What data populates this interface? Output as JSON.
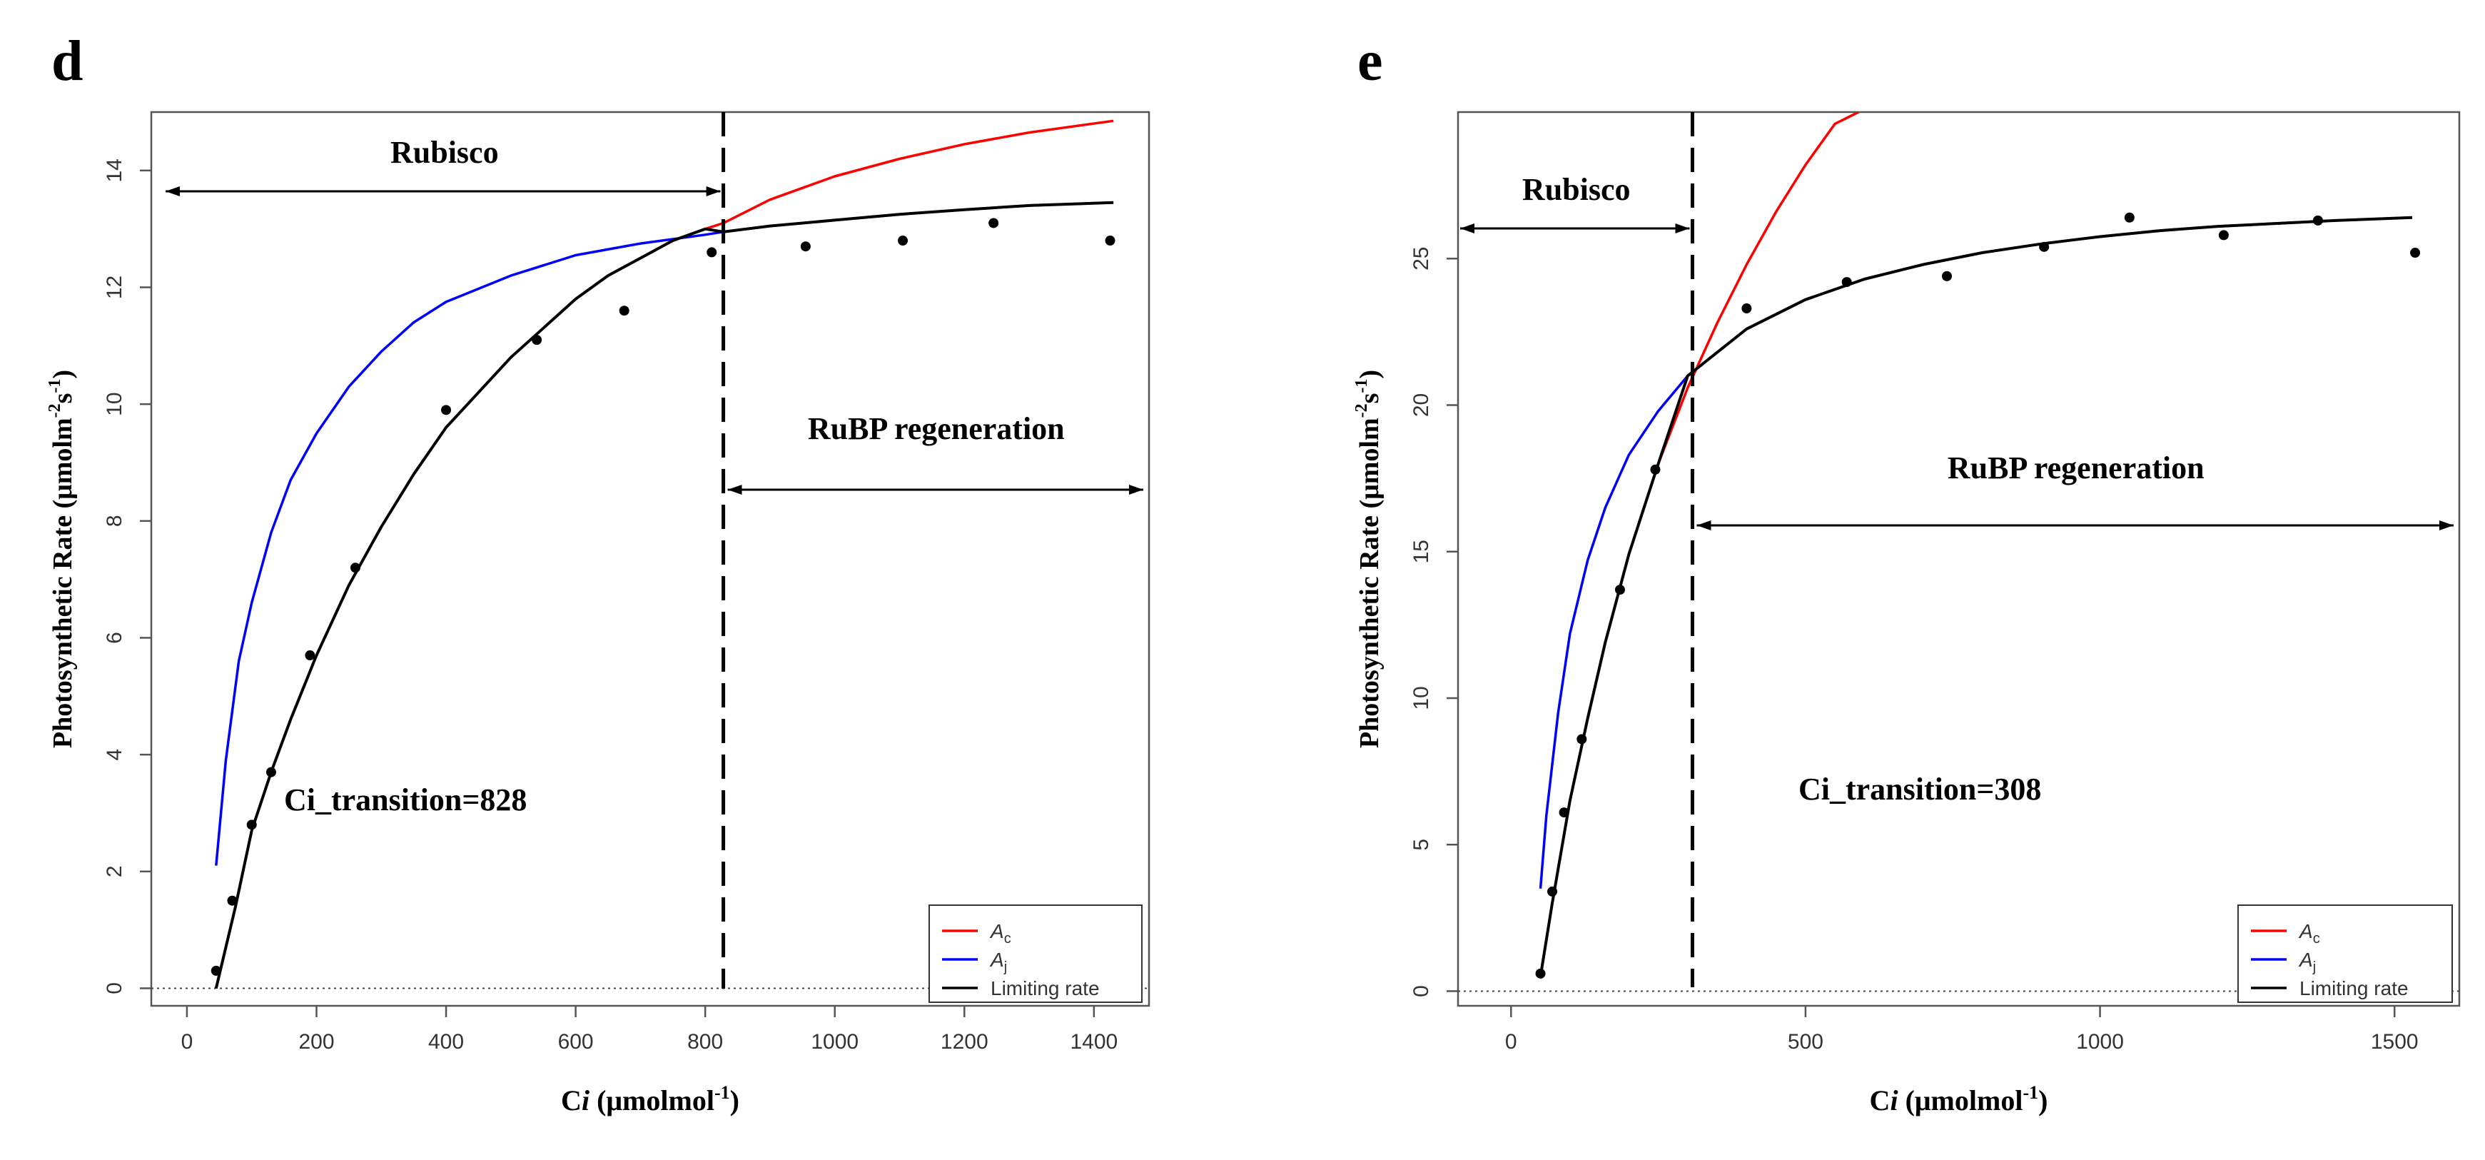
{
  "chart_data": [
    {
      "panel": "d",
      "type": "line",
      "xlabel": "Ci (μmolmol⁻¹)",
      "xlabel_parts": [
        "C",
        "i",
        " (μmolmol",
        "-1",
        ")"
      ],
      "ylabel_parts": [
        "Photosynthetic Rate (μmolm",
        "-2",
        "s",
        "-1",
        ")"
      ],
      "xlim": [
        -55,
        1485
      ],
      "ylim": [
        -0.3,
        15.0
      ],
      "xticks": [
        0,
        200,
        400,
        600,
        800,
        1000,
        1200,
        1400
      ],
      "yticks": [
        0,
        2,
        4,
        6,
        8,
        10,
        12,
        14
      ],
      "transition": 828,
      "rubisco_label": "Rubisco",
      "rubp_label": "RuBP regeneration",
      "transition_label": "Ci_transition=828",
      "legend": [
        {
          "label": "A",
          "sub": "c",
          "color": "#ff0000"
        },
        {
          "label": "A",
          "sub": "j",
          "color": "#0000ff"
        },
        {
          "label": "Limiting rate",
          "sub": "",
          "color": "#000000"
        }
      ],
      "series": [
        {
          "name": "Ac",
          "color": "#ff0000",
          "x": [
            45,
            75,
            100,
            130,
            160,
            200,
            250,
            300,
            350,
            400,
            450,
            500,
            550,
            600,
            650,
            700,
            750,
            800,
            828,
            900,
            1000,
            1100,
            1200,
            1300,
            1430
          ],
          "y": [
            0.0,
            1.4,
            2.7,
            3.7,
            4.6,
            5.7,
            6.9,
            7.9,
            8.8,
            9.6,
            10.2,
            10.8,
            11.3,
            11.8,
            12.2,
            12.5,
            12.8,
            13.0,
            13.1,
            13.5,
            13.9,
            14.2,
            14.45,
            14.65,
            14.85
          ]
        },
        {
          "name": "Aj",
          "color": "#0000ff",
          "x": [
            45,
            60,
            80,
            100,
            130,
            160,
            200,
            250,
            300,
            350,
            400,
            500,
            600,
            700,
            800,
            828,
            900,
            1000,
            1100,
            1200,
            1300,
            1430
          ],
          "y": [
            2.1,
            3.9,
            5.6,
            6.6,
            7.8,
            8.7,
            9.5,
            10.3,
            10.9,
            11.4,
            11.75,
            12.2,
            12.55,
            12.75,
            12.9,
            12.95,
            13.05,
            13.15,
            13.25,
            13.33,
            13.4,
            13.45
          ]
        },
        {
          "name": "Limiting rate",
          "color": "#000000",
          "x": [
            45,
            75,
            100,
            130,
            160,
            200,
            250,
            300,
            350,
            400,
            450,
            500,
            550,
            600,
            650,
            700,
            750,
            800,
            828,
            900,
            1000,
            1100,
            1200,
            1300,
            1430
          ],
          "y": [
            0.0,
            1.4,
            2.7,
            3.7,
            4.6,
            5.7,
            6.9,
            7.9,
            8.8,
            9.6,
            10.2,
            10.8,
            11.3,
            11.8,
            12.2,
            12.5,
            12.8,
            13.0,
            12.95,
            13.05,
            13.15,
            13.25,
            13.33,
            13.4,
            13.45
          ]
        }
      ],
      "points": {
        "x": [
          45,
          70,
          100,
          130,
          190,
          260,
          400,
          540,
          675,
          810,
          955,
          1105,
          1245,
          1425
        ],
        "y": [
          0.3,
          1.5,
          2.8,
          3.7,
          5.7,
          7.2,
          9.9,
          11.1,
          11.6,
          12.6,
          12.7,
          12.8,
          13.1,
          12.8
        ]
      }
    },
    {
      "panel": "e",
      "type": "line",
      "xlabel": "Ci (μmolmol⁻¹)",
      "xlabel_parts": [
        "C",
        "i",
        " (μmolmol",
        "-1",
        ")"
      ],
      "ylabel_parts": [
        "Photosynthetic Rate (μmolm",
        "-2",
        "s",
        "-1",
        ")"
      ],
      "xlim": [
        -90,
        1610
      ],
      "ylim": [
        -0.5,
        30.0
      ],
      "xticks": [
        0,
        500,
        1000,
        1500
      ],
      "yticks": [
        0,
        5,
        10,
        15,
        20,
        25
      ],
      "transition": 308,
      "rubisco_label": "Rubisco",
      "rubp_label": "RuBP regeneration",
      "transition_label": "Ci_transition=308",
      "legend": [
        {
          "label": "A",
          "sub": "c",
          "color": "#ff0000"
        },
        {
          "label": "A",
          "sub": "j",
          "color": "#0000ff"
        },
        {
          "label": "Limiting rate",
          "sub": "",
          "color": "#000000"
        }
      ],
      "series": [
        {
          "name": "Ac",
          "color": "#ff0000",
          "x": [
            50,
            70,
            100,
            130,
            160,
            200,
            250,
            300,
            350,
            400,
            450,
            500,
            550,
            590
          ],
          "y": [
            0.5,
            3.0,
            6.5,
            9.3,
            11.9,
            14.9,
            18.0,
            20.6,
            22.8,
            24.8,
            26.6,
            28.2,
            29.6,
            30.0
          ]
        },
        {
          "name": "Aj",
          "color": "#0000ff",
          "x": [
            50,
            60,
            80,
            100,
            130,
            160,
            200,
            250,
            300,
            400,
            500,
            600,
            700,
            800,
            900,
            1000,
            1100,
            1200,
            1300,
            1400,
            1530
          ],
          "y": [
            3.5,
            6.0,
            9.5,
            12.2,
            14.7,
            16.5,
            18.3,
            19.8,
            21.0,
            22.6,
            23.6,
            24.3,
            24.8,
            25.2,
            25.5,
            25.75,
            25.95,
            26.1,
            26.2,
            26.3,
            26.4
          ]
        },
        {
          "name": "Limiting rate",
          "color": "#000000",
          "x": [
            50,
            70,
            100,
            130,
            160,
            200,
            250,
            300,
            400,
            500,
            600,
            700,
            800,
            900,
            1000,
            1100,
            1200,
            1300,
            1400,
            1530
          ],
          "y": [
            0.5,
            3.0,
            6.5,
            9.3,
            11.9,
            14.9,
            18.0,
            21.0,
            22.6,
            23.6,
            24.3,
            24.8,
            25.2,
            25.5,
            25.75,
            25.95,
            26.1,
            26.2,
            26.3,
            26.4
          ]
        }
      ],
      "points": {
        "x": [
          50,
          70,
          90,
          120,
          185,
          245,
          400,
          570,
          740,
          905,
          1050,
          1210,
          1370,
          1535
        ],
        "y": [
          0.6,
          3.4,
          6.1,
          8.6,
          13.7,
          17.8,
          23.3,
          24.2,
          24.4,
          25.4,
          26.4,
          25.8,
          26.3,
          25.2
        ]
      }
    }
  ]
}
